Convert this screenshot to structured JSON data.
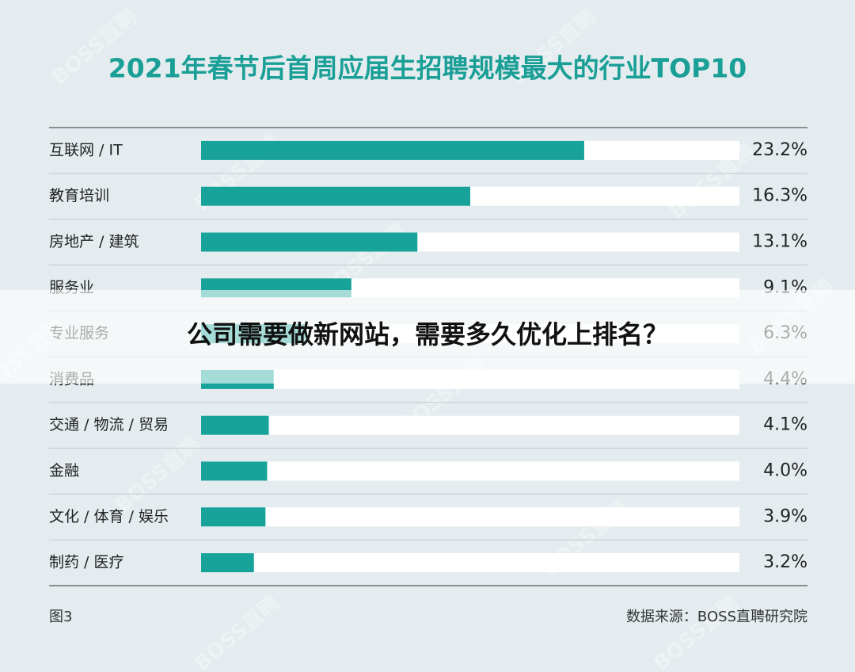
{
  "chart_data": {
    "type": "hbar",
    "title": "2021年春节后首周应届生招聘规模最大的行业TOP10",
    "categories": [
      "互联网 / IT",
      "教育培训",
      "房地产 / 建筑",
      "服务业",
      "专业服务",
      "消费品",
      "交通 / 物流 / 贸易",
      "金融",
      "文化 / 体育 / 娱乐",
      "制药 / 医疗"
    ],
    "values": [
      23.2,
      16.3,
      13.1,
      9.1,
      6.3,
      4.4,
      4.1,
      4.0,
      3.9,
      3.2
    ],
    "value_labels": [
      "23.2%",
      "16.3%",
      "13.1%",
      "9.1%",
      "6.3%",
      "4.4%",
      "4.1%",
      "4.0%",
      "3.9%",
      "3.2%"
    ],
    "color": "#17a29a",
    "xlim": [
      0,
      32.6
    ],
    "figure_label": "图3",
    "source": "数据来源：BOSS直聘研究院",
    "watermark": "BOSS直聘"
  },
  "overlay": {
    "headline": "公司需要做新网站，需要多久优化上排名？"
  }
}
